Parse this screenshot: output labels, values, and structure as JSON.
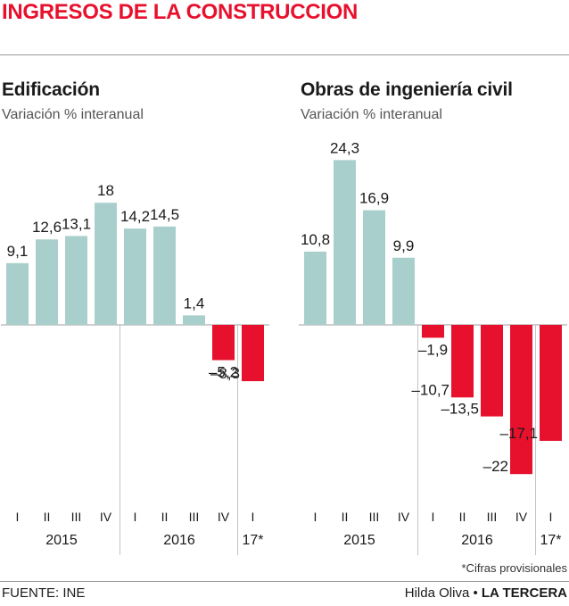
{
  "header": {
    "title": "INGRESOS DE LA CONSTRUCCION"
  },
  "colors": {
    "positive": "#a9cfcc",
    "negative": "#e8112d",
    "title": "#e8112d"
  },
  "chart_data": [
    {
      "type": "bar",
      "title": "Edificación",
      "subtitle": "Variación % interanual",
      "categories": [
        "I",
        "II",
        "III",
        "IV",
        "I",
        "II",
        "III",
        "IV",
        "I"
      ],
      "values": [
        9.1,
        12.6,
        13.1,
        18,
        14.2,
        14.5,
        1.4,
        -5.2,
        -8.3
      ],
      "value_labels": [
        "9,1",
        "12,6",
        "13,1",
        "18",
        "14,2",
        "14,5",
        "1,4",
        "–5,2",
        "–8,3"
      ],
      "groups": [
        {
          "label": "2015",
          "count": 4
        },
        {
          "label": "2016",
          "count": 4
        },
        {
          "label": "17*",
          "count": 1
        }
      ],
      "ylim": [
        -25,
        25
      ],
      "grid": false
    },
    {
      "type": "bar",
      "title": "Obras de ingeniería civil",
      "subtitle": "Variación % interanual",
      "categories": [
        "I",
        "II",
        "III",
        "IV",
        "I",
        "II",
        "III",
        "IV",
        "I"
      ],
      "values": [
        10.8,
        24.3,
        16.9,
        9.9,
        -1.9,
        -10.7,
        -13.5,
        -22,
        -17.1
      ],
      "value_labels": [
        "10,8",
        "24,3",
        "16,9",
        "9,9",
        "–1,9",
        "–10,7",
        "–13,5",
        "–22",
        "–17,1"
      ],
      "groups": [
        {
          "label": "2015",
          "count": 4
        },
        {
          "label": "2016",
          "count": 4
        },
        {
          "label": "17*",
          "count": 1
        }
      ],
      "ylim": [
        -25,
        25
      ],
      "grid": false
    }
  ],
  "footer": {
    "note": "*Cifras provisionales",
    "source": "FUENTE:  INE",
    "author": "Hilda Oliva",
    "separator": " • ",
    "outlet": "LA TERCERA"
  }
}
